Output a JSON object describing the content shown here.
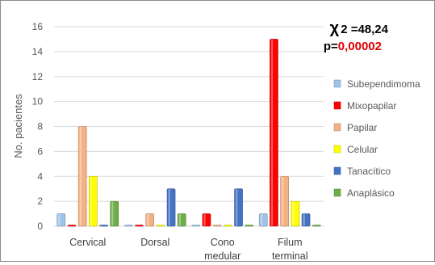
{
  "chart_data": {
    "type": "bar",
    "title": "",
    "xlabel": "",
    "ylabel": "No. pacientes",
    "ylim": [
      0,
      16
    ],
    "yticks": [
      0,
      2,
      4,
      6,
      8,
      10,
      12,
      14,
      16
    ],
    "grid": true,
    "legend_position": "right",
    "categories": [
      [
        "Cervical"
      ],
      [
        "Dorsal"
      ],
      [
        "Cono",
        "medular"
      ],
      [
        "Filum",
        "terminal"
      ]
    ],
    "series": [
      {
        "name": "Subependimoma",
        "color": "#9dc3e6",
        "values": [
          1,
          0,
          0,
          1
        ]
      },
      {
        "name": "Mixopapilar",
        "color": "#ff0000",
        "values": [
          0,
          0,
          1,
          15
        ]
      },
      {
        "name": "Papilar",
        "color": "#f4b183",
        "values": [
          8,
          1,
          0,
          4
        ]
      },
      {
        "name": "Celular",
        "color": "#ffff00",
        "values": [
          4,
          0,
          0,
          2
        ]
      },
      {
        "name": "Tanacítico",
        "color": "#4472c4",
        "values": [
          0,
          3,
          3,
          1
        ]
      },
      {
        "name": "Anaplásico",
        "color": "#70ad47",
        "values": [
          2,
          1,
          0,
          0
        ]
      }
    ],
    "annotations": {
      "chi_symbol": "χ",
      "chi_text": "2 =48,24",
      "p_label": "p=",
      "p_value": "0,00002",
      "p_value_color": "#e00000"
    }
  }
}
